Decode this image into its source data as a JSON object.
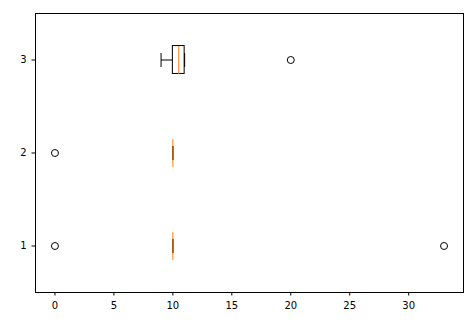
{
  "chart_data": {
    "type": "boxplot",
    "orientation": "horizontal",
    "boxes": [
      {
        "position": 1,
        "whislo": 10,
        "q1": 10,
        "med": 10,
        "q3": 10,
        "whishi": 10,
        "fliers": [
          0,
          33
        ]
      },
      {
        "position": 2,
        "whislo": 10,
        "q1": 10,
        "med": 10,
        "q3": 10,
        "whishi": 10,
        "fliers": [
          0
        ]
      },
      {
        "position": 3,
        "whislo": 9,
        "q1": 10,
        "med": 10.5,
        "q3": 11,
        "whishi": 11,
        "fliers": [
          20
        ]
      }
    ],
    "color": "#000000",
    "median_color": "#ff7f0e",
    "marker": "circle",
    "xlim": [
      -1.65,
      34.65
    ],
    "xticks": [
      0,
      5,
      10,
      15,
      20,
      25,
      30
    ],
    "ylim": [
      0.5,
      3.5
    ],
    "yticks": [
      1,
      2,
      3
    ],
    "grid": false
  }
}
